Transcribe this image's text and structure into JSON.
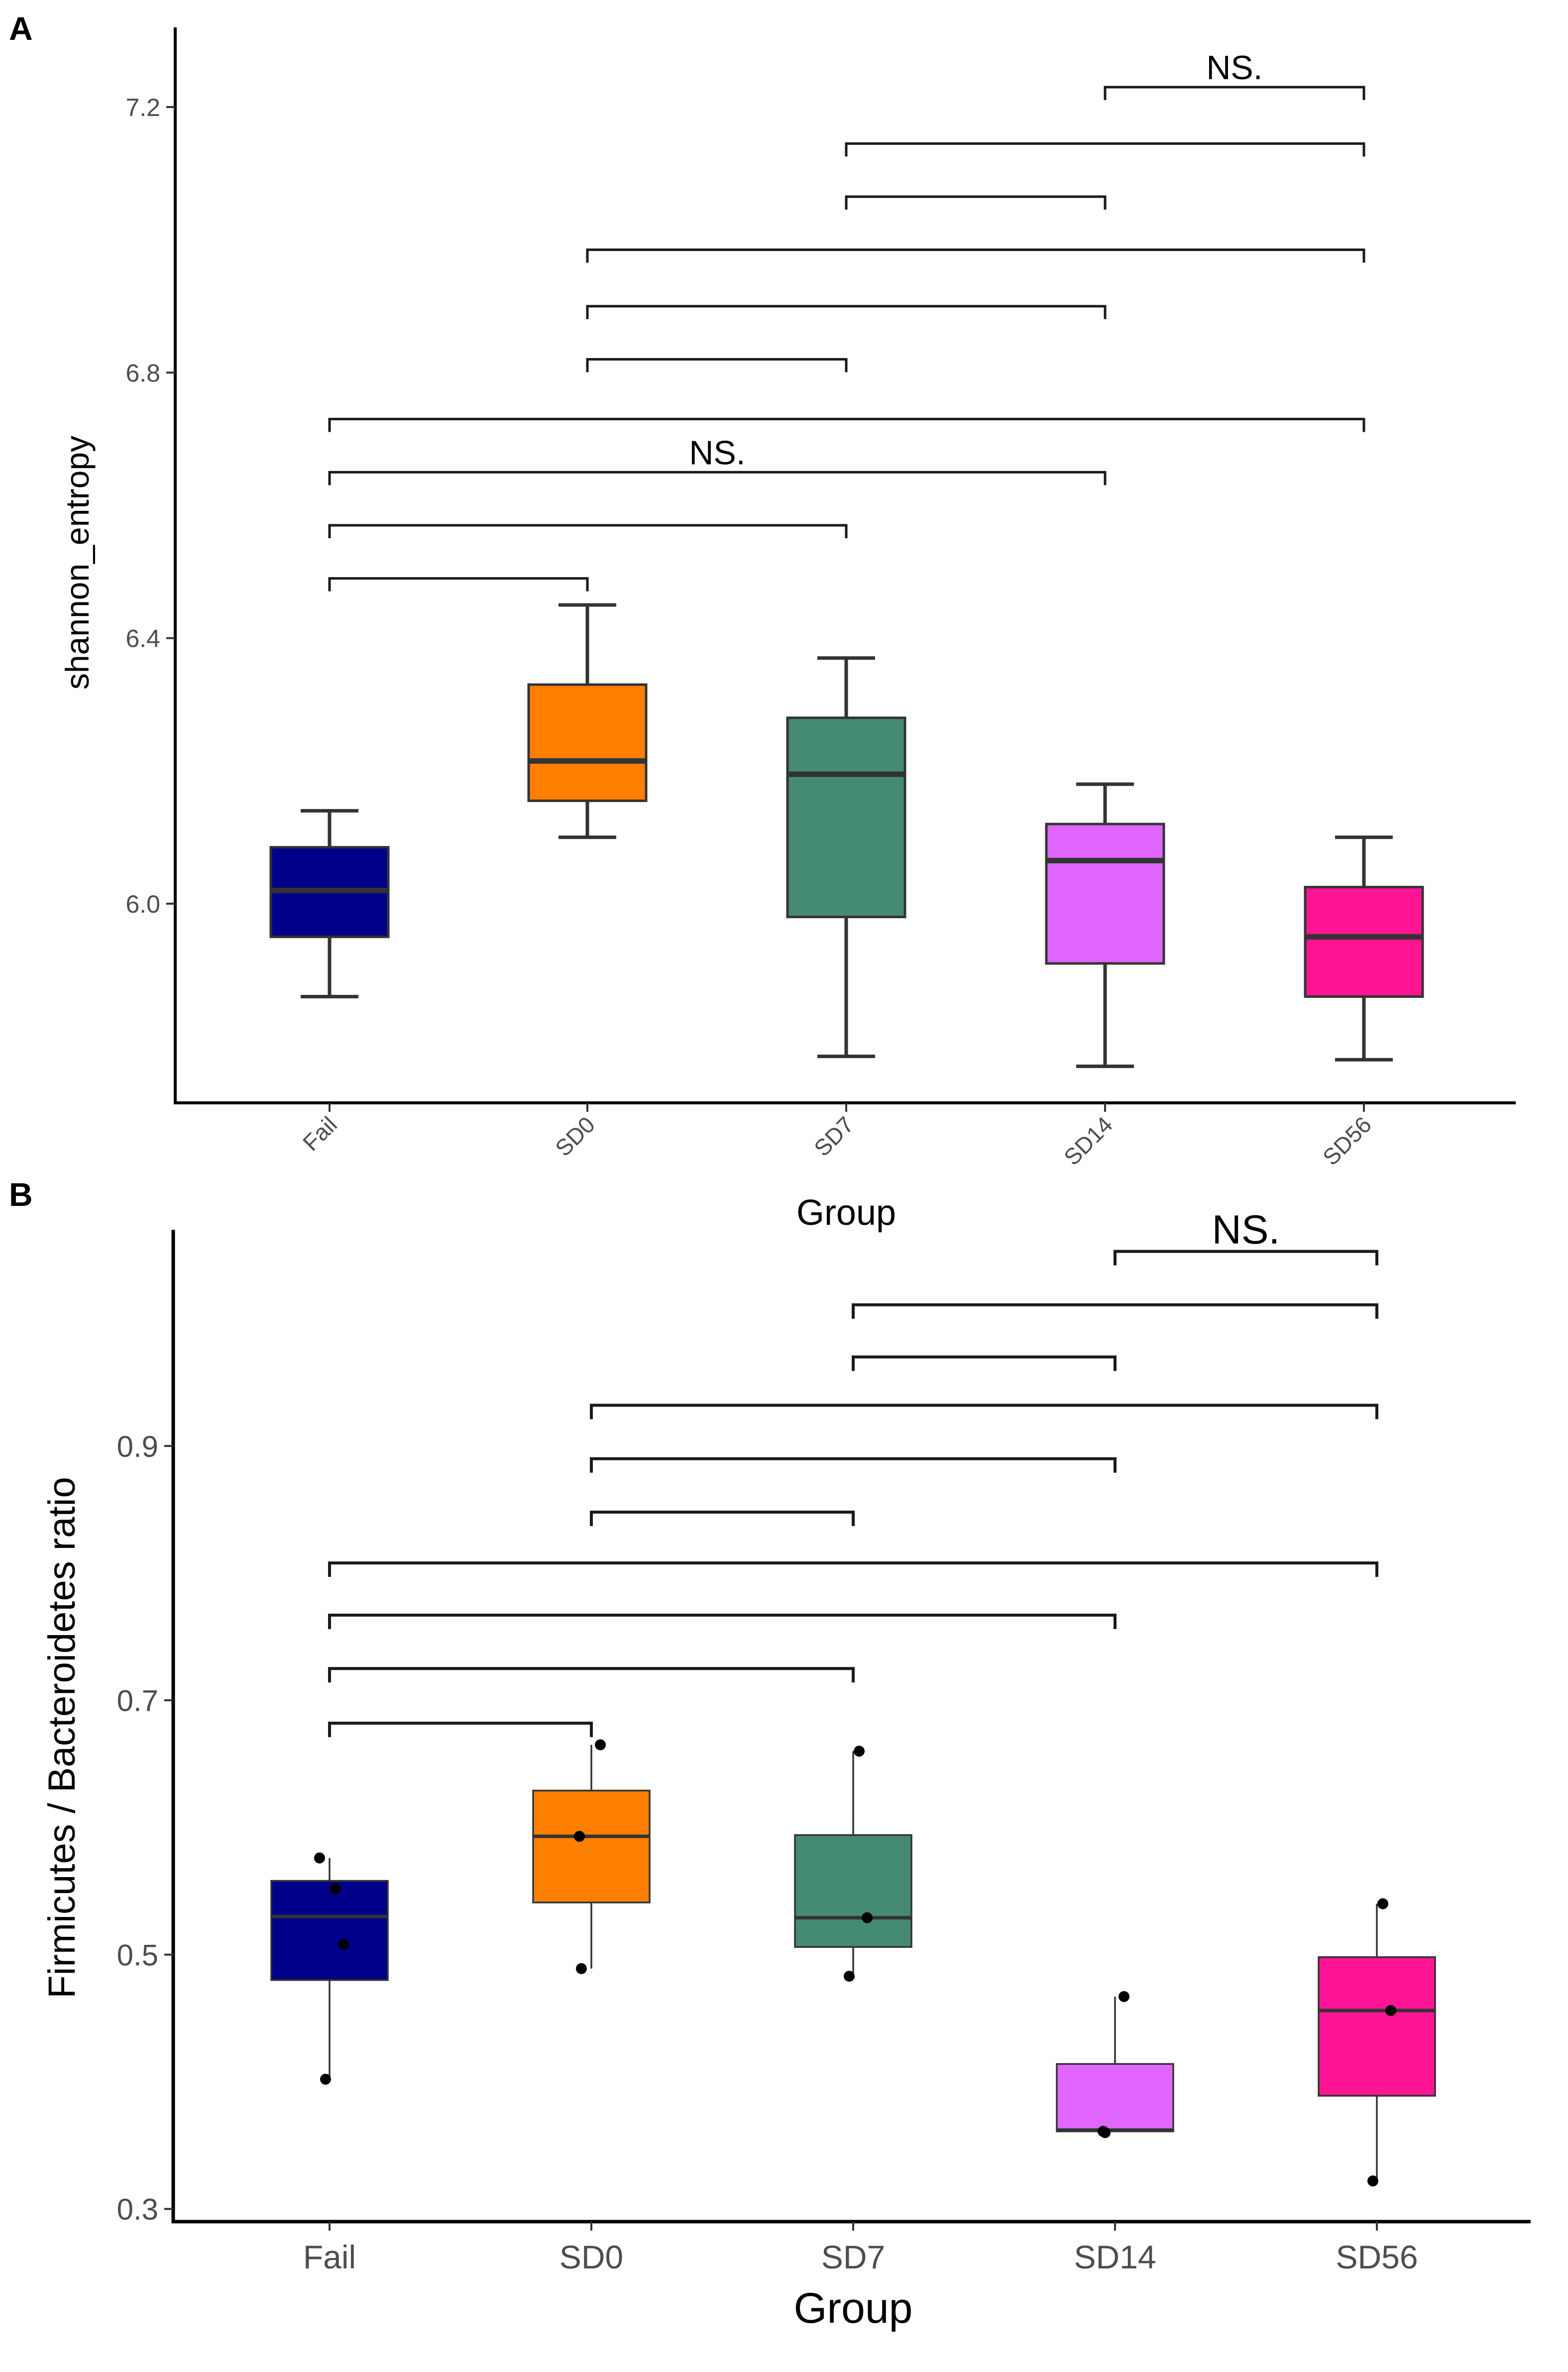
{
  "chart_data": [
    {
      "panel_label": "A",
      "type": "box",
      "xlabel": "Group",
      "ylabel": "shannon_entropy",
      "categories": [
        "Fail",
        "SD0",
        "SD7",
        "SD14",
        "SD56"
      ],
      "colors": [
        "#00008b",
        "#ff7f00",
        "#458b74",
        "#e066ff",
        "#ff1493"
      ],
      "ylim": [
        5.7,
        7.32
      ],
      "yticks": [
        6.0,
        6.4,
        6.8,
        7.2
      ],
      "ytick_labels": [
        "6.0",
        "6.4",
        "6.8",
        "7.2"
      ],
      "boxes": [
        {
          "group": "Fail",
          "whisker_low": 5.86,
          "q1": 5.95,
          "median": 6.02,
          "q3": 6.085,
          "whisker_high": 6.14
        },
        {
          "group": "SD0",
          "whisker_low": 6.1,
          "q1": 6.155,
          "median": 6.215,
          "q3": 6.33,
          "whisker_high": 6.45
        },
        {
          "group": "SD7",
          "whisker_low": 5.77,
          "q1": 5.98,
          "median": 6.195,
          "q3": 6.28,
          "whisker_high": 6.37
        },
        {
          "group": "SD14",
          "whisker_low": 5.755,
          "q1": 5.91,
          "median": 6.065,
          "q3": 6.12,
          "whisker_high": 6.18
        },
        {
          "group": "SD56",
          "whisker_low": 5.765,
          "q1": 5.86,
          "median": 5.95,
          "q3": 6.025,
          "whisker_high": 6.1
        }
      ],
      "points": [],
      "brackets": [
        {
          "from": "Fail",
          "to": "SD0",
          "y": 6.49,
          "label": ""
        },
        {
          "from": "Fail",
          "to": "SD7",
          "y": 6.57,
          "label": ""
        },
        {
          "from": "Fail",
          "to": "SD14",
          "y": 6.65,
          "label": "NS."
        },
        {
          "from": "Fail",
          "to": "SD56",
          "y": 6.73,
          "label": ""
        },
        {
          "from": "SD0",
          "to": "SD7",
          "y": 6.82,
          "label": ""
        },
        {
          "from": "SD0",
          "to": "SD14",
          "y": 6.9,
          "label": ""
        },
        {
          "from": "SD0",
          "to": "SD56",
          "y": 6.985,
          "label": ""
        },
        {
          "from": "SD7",
          "to": "SD14",
          "y": 7.065,
          "label": ""
        },
        {
          "from": "SD7",
          "to": "SD56",
          "y": 7.145,
          "label": ""
        },
        {
          "from": "SD14",
          "to": "SD56",
          "y": 7.23,
          "label": "NS."
        }
      ]
    },
    {
      "panel_label": "B",
      "type": "box",
      "xlabel": "Group",
      "ylabel": "Firmicutes / Bacteroidetes ratio",
      "categories": [
        "Fail",
        "SD0",
        "SD7",
        "SD14",
        "SD56"
      ],
      "colors": [
        "#00008b",
        "#ff7f00",
        "#458b74",
        "#e066ff",
        "#ff1493"
      ],
      "ylim": [
        0.29,
        1.07
      ],
      "yticks": [
        0.3,
        0.5,
        0.7,
        0.9
      ],
      "ytick_labels": [
        "0.3",
        "0.5",
        "0.7",
        "0.9"
      ],
      "boxes": [
        {
          "group": "Fail",
          "whisker_low": 0.402,
          "q1": 0.48,
          "median": 0.53,
          "q3": 0.558,
          "whisker_high": 0.576
        },
        {
          "group": "SD0",
          "whisker_low": 0.489,
          "q1": 0.541,
          "median": 0.593,
          "q3": 0.629,
          "whisker_high": 0.665
        },
        {
          "group": "SD7",
          "whisker_low": 0.483,
          "q1": 0.506,
          "median": 0.529,
          "q3": 0.594,
          "whisker_high": 0.66
        },
        {
          "group": "SD14",
          "whisker_low": 0.361,
          "q1": 0.361,
          "median": 0.362,
          "q3": 0.414,
          "whisker_high": 0.467
        },
        {
          "group": "SD56",
          "whisker_low": 0.322,
          "q1": 0.389,
          "median": 0.456,
          "q3": 0.498,
          "whisker_high": 0.54
        }
      ],
      "points": [
        {
          "group": "Fail",
          "value": 0.576
        },
        {
          "group": "Fail",
          "value": 0.552
        },
        {
          "group": "Fail",
          "value": 0.508
        },
        {
          "group": "Fail",
          "value": 0.402
        },
        {
          "group": "SD0",
          "value": 0.665
        },
        {
          "group": "SD0",
          "value": 0.593
        },
        {
          "group": "SD0",
          "value": 0.489
        },
        {
          "group": "SD7",
          "value": 0.66
        },
        {
          "group": "SD7",
          "value": 0.529
        },
        {
          "group": "SD7",
          "value": 0.483
        },
        {
          "group": "SD14",
          "value": 0.467
        },
        {
          "group": "SD14",
          "value": 0.361
        },
        {
          "group": "SD14",
          "value": 0.36
        },
        {
          "group": "SD56",
          "value": 0.54
        },
        {
          "group": "SD56",
          "value": 0.456
        },
        {
          "group": "SD56",
          "value": 0.322
        }
      ],
      "brackets": [
        {
          "from": "Fail",
          "to": "SD0",
          "y": 0.682,
          "label": ""
        },
        {
          "from": "Fail",
          "to": "SD7",
          "y": 0.725,
          "label": ""
        },
        {
          "from": "Fail",
          "to": "SD14",
          "y": 0.767,
          "label": ""
        },
        {
          "from": "Fail",
          "to": "SD56",
          "y": 0.808,
          "label": ""
        },
        {
          "from": "SD0",
          "to": "SD7",
          "y": 0.848,
          "label": ""
        },
        {
          "from": "SD0",
          "to": "SD14",
          "y": 0.89,
          "label": ""
        },
        {
          "from": "SD0",
          "to": "SD56",
          "y": 0.932,
          "label": ""
        },
        {
          "from": "SD7",
          "to": "SD14",
          "y": 0.97,
          "label": ""
        },
        {
          "from": "SD7",
          "to": "SD56",
          "y": 1.011,
          "label": ""
        },
        {
          "from": "SD14",
          "to": "SD56",
          "y": 1.053,
          "label": "NS."
        }
      ]
    }
  ]
}
